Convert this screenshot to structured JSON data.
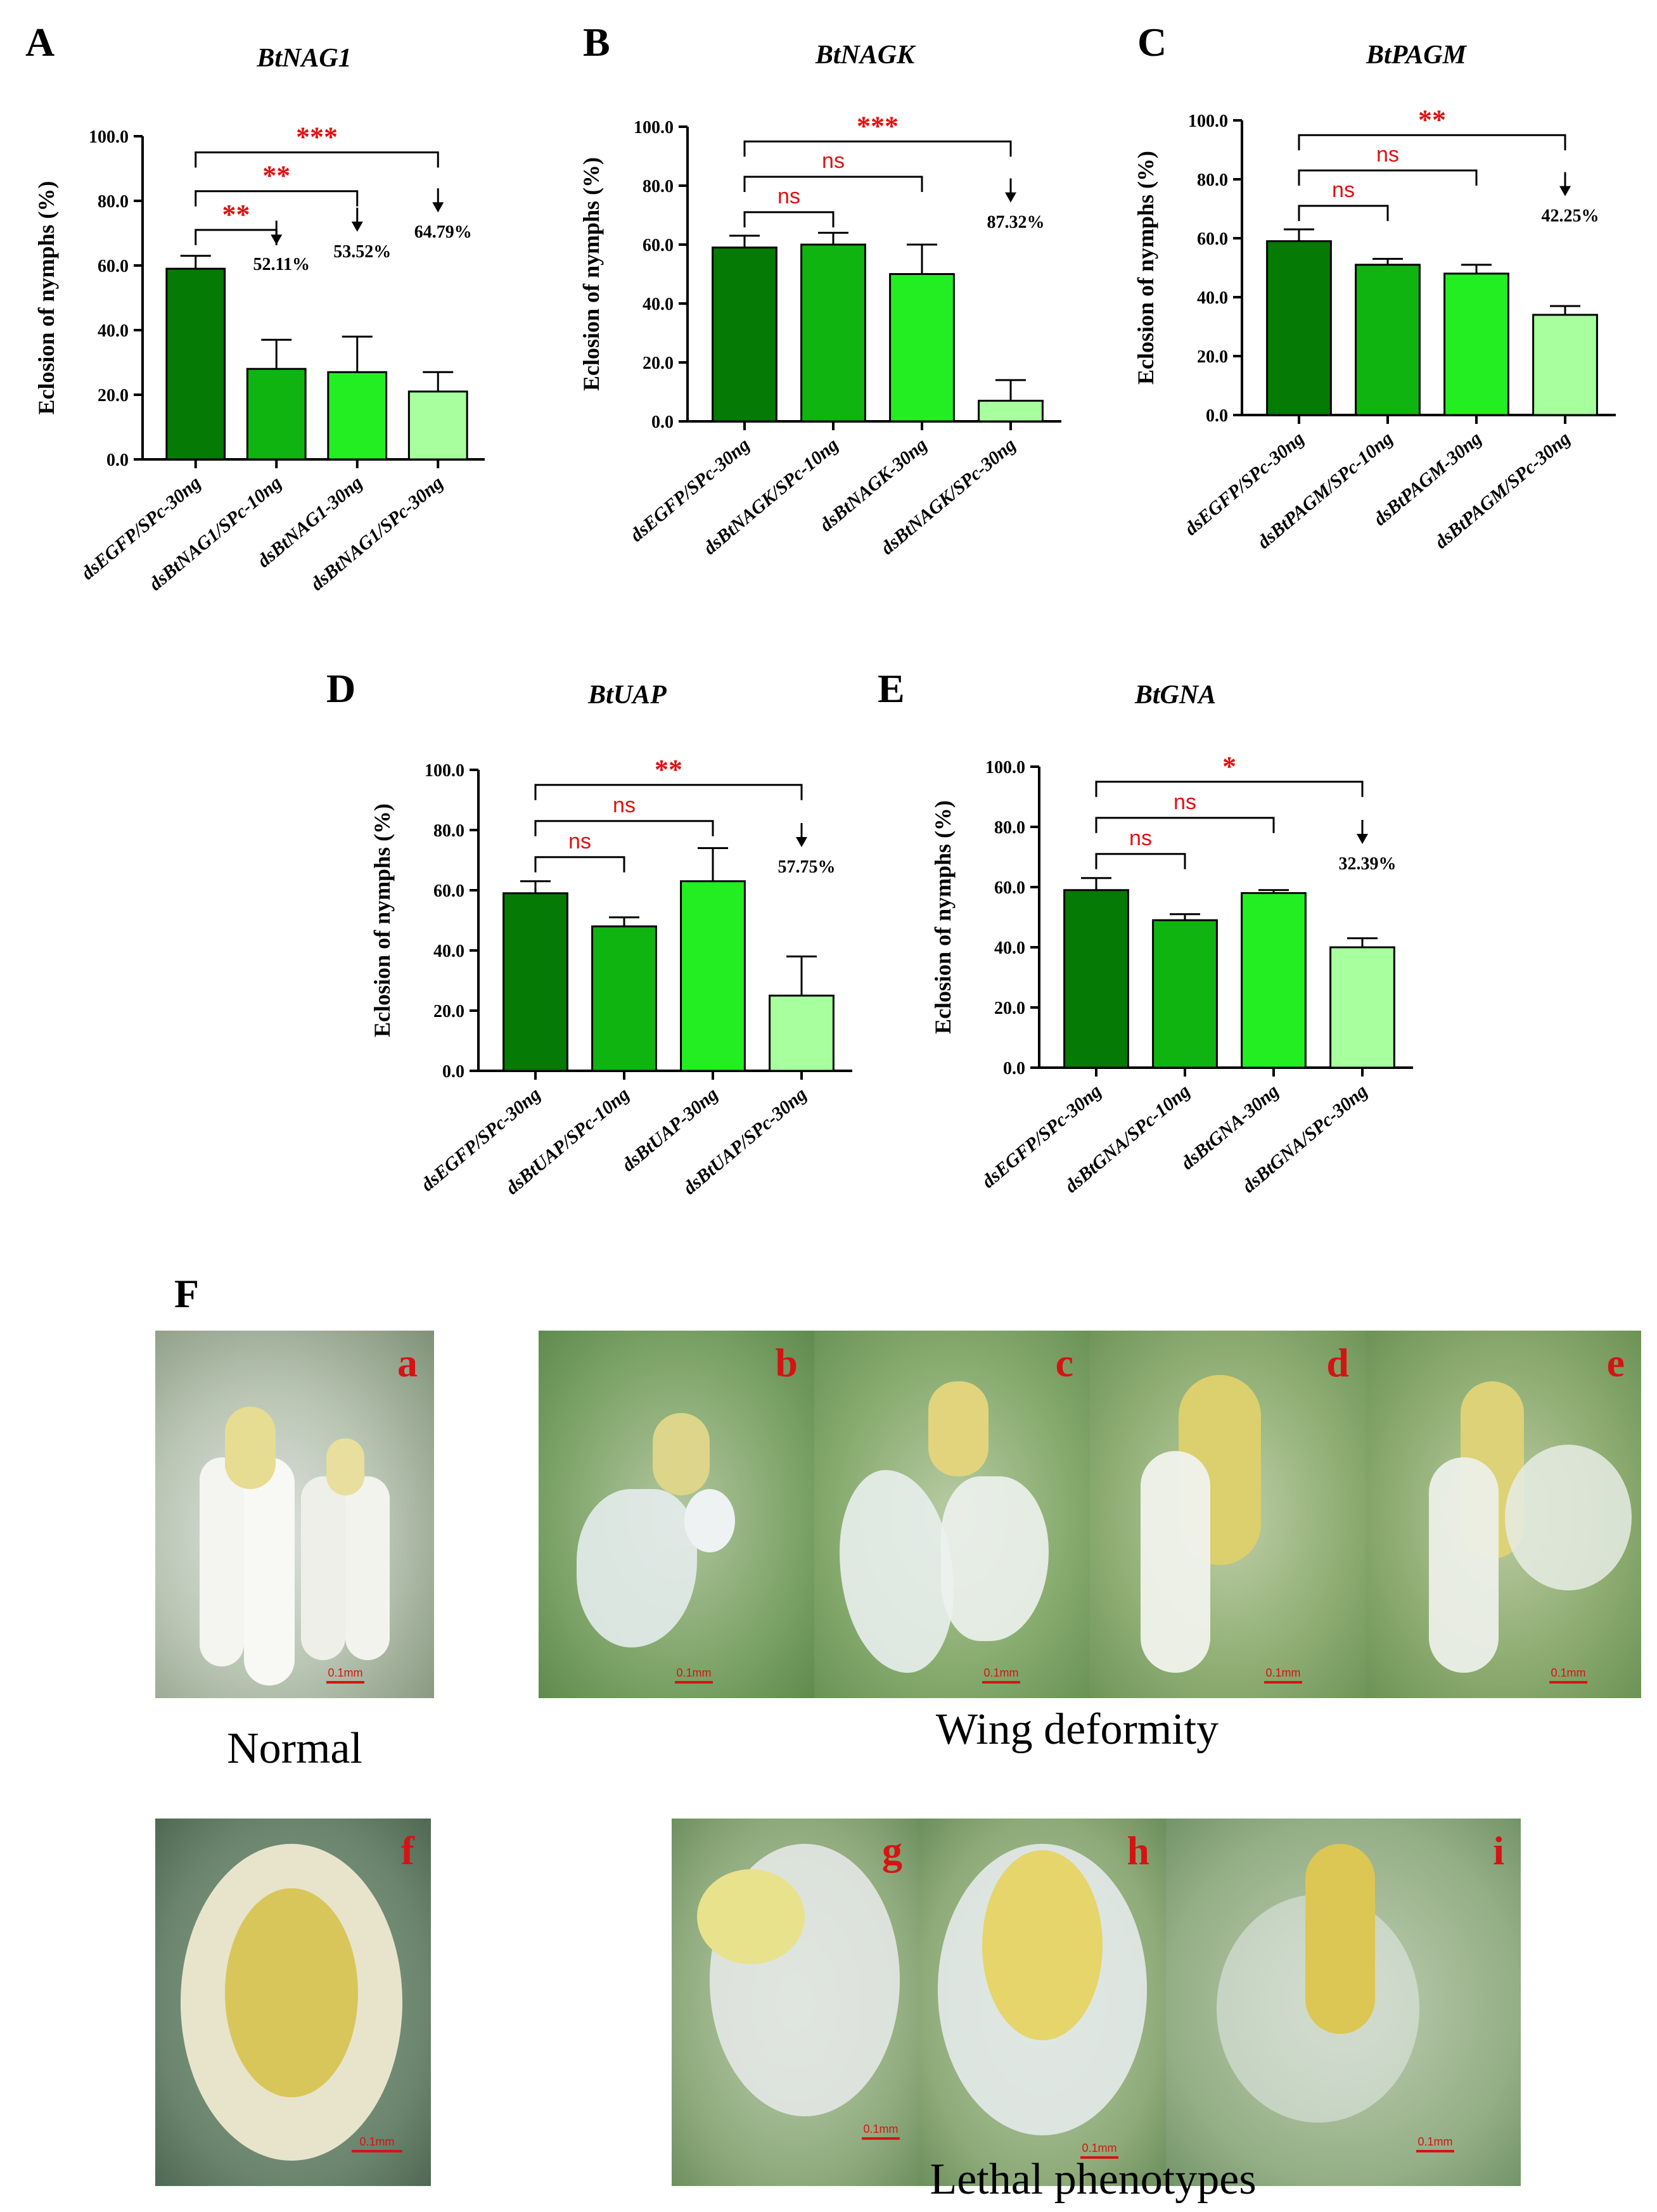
{
  "colors": [
    "#057a05",
    "#10b410",
    "#22ee22",
    "#a8ff9e"
  ],
  "significance_color": "#e01010",
  "panels": [
    {
      "letter": "A",
      "title": "BtNAG1"
    },
    {
      "letter": "B",
      "title": "BtNAGK"
    },
    {
      "letter": "C",
      "title": "BtPAGM"
    },
    {
      "letter": "D",
      "title": "BtUAP"
    },
    {
      "letter": "E",
      "title": "BtGNA"
    }
  ],
  "chart_data": [
    {
      "type": "bar",
      "title": "BtNAG1",
      "ylabel": "Eclosion of nymphs (%)",
      "ylim": [
        0,
        100
      ],
      "yticks": [
        "0.0",
        "20.0",
        "40.0",
        "60.0",
        "80.0",
        "100.0"
      ],
      "categories": [
        "dsEGFP/SPc-30ng",
        "dsBtNAG1/SPc-10ng",
        "dsBtNAG1-30ng",
        "dsBtNAG1/SPc-30ng"
      ],
      "values": [
        59,
        28,
        27,
        21
      ],
      "errors": [
        4,
        9,
        11,
        6
      ],
      "brackets": [
        {
          "to": 1,
          "label": "**",
          "y": 71
        },
        {
          "to": 2,
          "label": "**",
          "y": 83
        },
        {
          "to": 3,
          "label": "***",
          "y": 95
        }
      ],
      "annotations": [
        {
          "bar": 1,
          "text": "52.11%"
        },
        {
          "bar": 2,
          "text": "53.52%"
        },
        {
          "bar": 3,
          "text": "64.79%"
        }
      ]
    },
    {
      "type": "bar",
      "title": "BtNAGK",
      "ylabel": "Eclosion of nymphs (%)",
      "ylim": [
        0,
        100
      ],
      "yticks": [
        "0.0",
        "20.0",
        "40.0",
        "60.0",
        "80.0",
        "100.0"
      ],
      "categories": [
        "dsEGFP/SPc-30ng",
        "dsBtNAGK/SPc-10ng",
        "dsBtNAGK-30ng",
        "dsBtNAGK/SPc-30ng"
      ],
      "values": [
        59,
        60,
        50,
        7
      ],
      "errors": [
        4,
        4,
        10,
        7
      ],
      "brackets": [
        {
          "to": 1,
          "label": "ns",
          "y": 71
        },
        {
          "to": 2,
          "label": "ns",
          "y": 83
        },
        {
          "to": 3,
          "label": "***",
          "y": 95
        }
      ],
      "annotations": [
        {
          "bar": 3,
          "text": "87.32%"
        }
      ]
    },
    {
      "type": "bar",
      "title": "BtPAGM",
      "ylabel": "Eclosion of nymphs (%)",
      "ylim": [
        0,
        100
      ],
      "yticks": [
        "0.0",
        "20.0",
        "40.0",
        "60.0",
        "80.0",
        "100.0"
      ],
      "categories": [
        "dsEGFP/SPc-30ng",
        "dsBtPAGM/SPc-10ng",
        "dsBtPAGM-30ng",
        "dsBtPAGM/SPc-30ng"
      ],
      "values": [
        59,
        51,
        48,
        34
      ],
      "errors": [
        4,
        2,
        3,
        3
      ],
      "brackets": [
        {
          "to": 1,
          "label": "ns",
          "y": 71
        },
        {
          "to": 2,
          "label": "ns",
          "y": 83
        },
        {
          "to": 3,
          "label": "**",
          "y": 95
        }
      ],
      "annotations": [
        {
          "bar": 3,
          "text": "42.25%"
        }
      ]
    },
    {
      "type": "bar",
      "title": "BtUAP",
      "ylabel": "Eclosion of nymphs (%)",
      "ylim": [
        0,
        100
      ],
      "yticks": [
        "0.0",
        "20.0",
        "40.0",
        "60.0",
        "80.0",
        "100.0"
      ],
      "categories": [
        "dsEGFP/SPc-30ng",
        "dsBtUAP/SPc-10ng",
        "dsBtUAP-30ng",
        "dsBtUAP/SPc-30ng"
      ],
      "values": [
        59,
        48,
        63,
        25
      ],
      "errors": [
        4,
        3,
        11,
        13
      ],
      "brackets": [
        {
          "to": 1,
          "label": "ns",
          "y": 71
        },
        {
          "to": 2,
          "label": "ns",
          "y": 83
        },
        {
          "to": 3,
          "label": "**",
          "y": 95
        }
      ],
      "annotations": [
        {
          "bar": 3,
          "text": "57.75%"
        }
      ]
    },
    {
      "type": "bar",
      "title": "BtGNA",
      "ylabel": "Eclosion of nymphs (%)",
      "ylim": [
        0,
        100
      ],
      "yticks": [
        "0.0",
        "20.0",
        "40.0",
        "60.0",
        "80.0",
        "100.0"
      ],
      "categories": [
        "dsEGFP/SPc-30ng",
        "dsBtGNA/SPc-10ng",
        "dsBtGNA-30ng",
        "dsBtGNA/SPc-30ng"
      ],
      "values": [
        59,
        49,
        58,
        40
      ],
      "errors": [
        4,
        2,
        1,
        3
      ],
      "brackets": [
        {
          "to": 1,
          "label": "ns",
          "y": 71
        },
        {
          "to": 2,
          "label": "ns",
          "y": 83
        },
        {
          "to": 3,
          "label": "*",
          "y": 95
        }
      ],
      "annotations": [
        {
          "bar": 3,
          "text": "32.39%"
        }
      ]
    }
  ],
  "photos": {
    "panel_letter": "F",
    "scale_text": "0.1mm",
    "items": [
      {
        "letter": "a"
      },
      {
        "letter": "b"
      },
      {
        "letter": "c"
      },
      {
        "letter": "d"
      },
      {
        "letter": "e"
      },
      {
        "letter": "f"
      },
      {
        "letter": "g"
      },
      {
        "letter": "h"
      },
      {
        "letter": "i"
      }
    ],
    "captions": {
      "normal": "Normal",
      "wing": "Wing deformity",
      "lethal": "Lethal phenotypes"
    }
  }
}
